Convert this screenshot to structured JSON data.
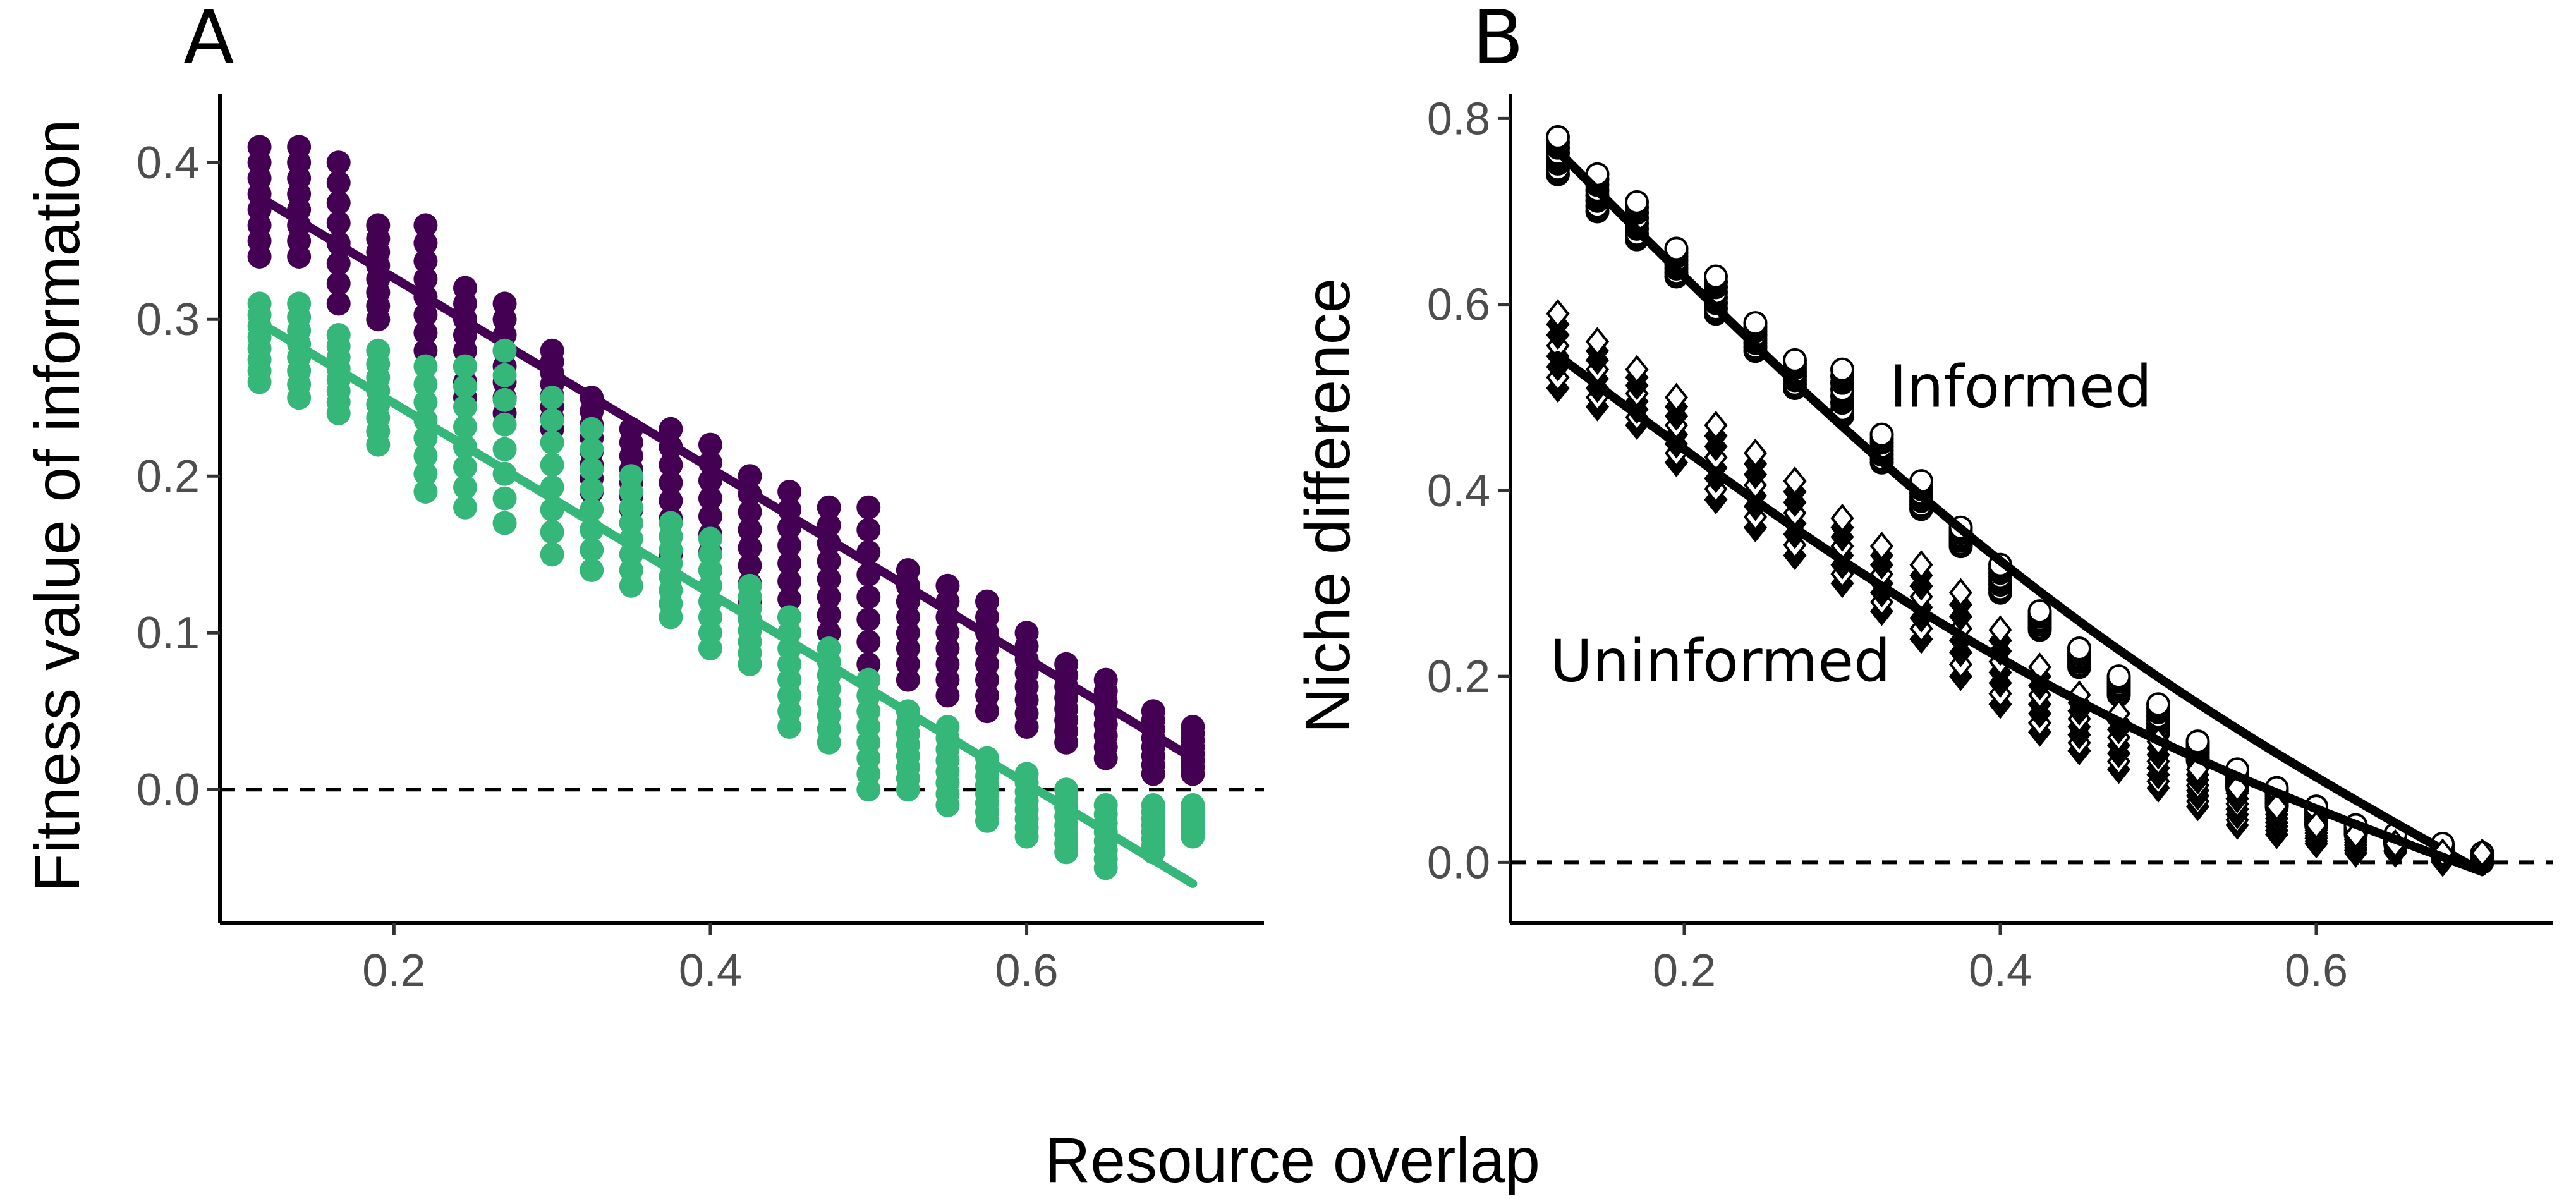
{
  "shared_xlabel": "Resource overlap",
  "chart_data": [
    {
      "type": "scatter",
      "panel_label": "A",
      "title": "",
      "xlabel": "",
      "ylabel": "Fitness value of information",
      "xlim": [
        0.09,
        0.75
      ],
      "ylim": [
        -0.085,
        0.44
      ],
      "xticks": [
        0.2,
        0.4,
        0.6
      ],
      "xtick_labels": [
        "0.2",
        "0.4",
        "0.6"
      ],
      "yticks": [
        0.0,
        0.1,
        0.2,
        0.3,
        0.4
      ],
      "ytick_labels": [
        "0.0",
        "0.1",
        "0.2",
        "0.3",
        "0.4"
      ],
      "grid": false,
      "legend": "none",
      "reference_line": {
        "y": 0,
        "style": "dashed"
      },
      "x": [
        0.115,
        0.14,
        0.165,
        0.19,
        0.22,
        0.245,
        0.27,
        0.3,
        0.325,
        0.35,
        0.375,
        0.4,
        0.425,
        0.45,
        0.475,
        0.5,
        0.525,
        0.55,
        0.575,
        0.6,
        0.625,
        0.65,
        0.68,
        0.705
      ],
      "series": [
        {
          "color": "#440154",
          "ymin": [
            0.34,
            0.34,
            0.31,
            0.3,
            0.28,
            0.25,
            0.24,
            0.23,
            0.19,
            0.17,
            0.15,
            0.14,
            0.12,
            0.11,
            0.1,
            0.08,
            0.07,
            0.06,
            0.05,
            0.04,
            0.03,
            0.02,
            0.01,
            0.01
          ],
          "ymax": [
            0.41,
            0.41,
            0.4,
            0.36,
            0.36,
            0.32,
            0.31,
            0.28,
            0.25,
            0.23,
            0.23,
            0.22,
            0.2,
            0.19,
            0.18,
            0.18,
            0.14,
            0.13,
            0.12,
            0.1,
            0.08,
            0.07,
            0.05,
            0.04
          ],
          "fit": {
            "x": [
              0.115,
              0.705
            ],
            "y": [
              0.378,
              0.02
            ]
          }
        },
        {
          "color": "#35b779",
          "ymin": [
            0.26,
            0.25,
            0.24,
            0.22,
            0.19,
            0.18,
            0.17,
            0.15,
            0.14,
            0.13,
            0.11,
            0.09,
            0.08,
            0.04,
            0.03,
            0.0,
            0.0,
            -0.01,
            -0.02,
            -0.03,
            -0.04,
            -0.05,
            -0.04,
            -0.03
          ],
          "ymax": [
            0.31,
            0.31,
            0.29,
            0.28,
            0.27,
            0.27,
            0.28,
            0.25,
            0.23,
            0.2,
            0.17,
            0.16,
            0.13,
            0.11,
            0.09,
            0.07,
            0.05,
            0.04,
            0.02,
            0.01,
            0.0,
            -0.01,
            -0.01,
            -0.01
          ],
          "fit": {
            "x": [
              0.115,
              0.705
            ],
            "y": [
              0.298,
              -0.06
            ]
          }
        }
      ]
    },
    {
      "type": "scatter",
      "panel_label": "B",
      "title": "",
      "xlabel": "",
      "ylabel": "Niche difference",
      "xlim": [
        0.09,
        0.75
      ],
      "ylim": [
        -0.065,
        0.82
      ],
      "xticks": [
        0.2,
        0.4,
        0.6
      ],
      "xtick_labels": [
        "0.2",
        "0.4",
        "0.6"
      ],
      "yticks": [
        0.0,
        0.2,
        0.4,
        0.6,
        0.8
      ],
      "ytick_labels": [
        "0.0",
        "0.2",
        "0.4",
        "0.6",
        "0.8"
      ],
      "grid": false,
      "legend": "none",
      "reference_line": {
        "y": 0,
        "style": "dashed"
      },
      "annotations": [
        {
          "text": "Informed",
          "x": 0.33,
          "y": 0.49
        },
        {
          "text": "Uninformed",
          "x": 0.115,
          "y": 0.195
        }
      ],
      "x": [
        0.12,
        0.145,
        0.17,
        0.195,
        0.22,
        0.245,
        0.27,
        0.3,
        0.325,
        0.35,
        0.375,
        0.4,
        0.425,
        0.45,
        0.475,
        0.5,
        0.525,
        0.55,
        0.575,
        0.6,
        0.625,
        0.65,
        0.68,
        0.705
      ],
      "series": [
        {
          "name": "Informed",
          "marker": "circle",
          "color": "#000000",
          "ymin": [
            0.74,
            0.7,
            0.67,
            0.63,
            0.59,
            0.55,
            0.51,
            0.48,
            0.43,
            0.38,
            0.34,
            0.29,
            0.25,
            0.21,
            0.18,
            0.14,
            0.11,
            0.08,
            0.06,
            0.04,
            0.03,
            0.02,
            0.01,
            0.0
          ],
          "ymax": [
            0.78,
            0.74,
            0.71,
            0.66,
            0.63,
            0.58,
            0.54,
            0.53,
            0.46,
            0.41,
            0.36,
            0.32,
            0.27,
            0.23,
            0.2,
            0.17,
            0.13,
            0.1,
            0.08,
            0.06,
            0.04,
            0.03,
            0.02,
            0.01
          ],
          "fit": {
            "x": [
              0.12,
              0.705
            ],
            "y": [
              0.765,
              -0.01
            ]
          }
        },
        {
          "name": "Uninformed",
          "marker": "diamond",
          "color": "#000000",
          "ymin": [
            0.51,
            0.49,
            0.47,
            0.43,
            0.39,
            0.36,
            0.33,
            0.3,
            0.27,
            0.24,
            0.2,
            0.17,
            0.14,
            0.12,
            0.1,
            0.08,
            0.06,
            0.04,
            0.03,
            0.02,
            0.01,
            0.01,
            0.0,
            0.0
          ],
          "ymax": [
            0.59,
            0.56,
            0.53,
            0.5,
            0.47,
            0.44,
            0.41,
            0.37,
            0.34,
            0.32,
            0.29,
            0.25,
            0.21,
            0.18,
            0.16,
            0.13,
            0.1,
            0.08,
            0.06,
            0.04,
            0.03,
            0.02,
            0.01,
            0.01
          ],
          "fit": {
            "x": [
              0.12,
              0.705
            ],
            "y": [
              0.545,
              -0.01
            ]
          }
        }
      ]
    }
  ]
}
